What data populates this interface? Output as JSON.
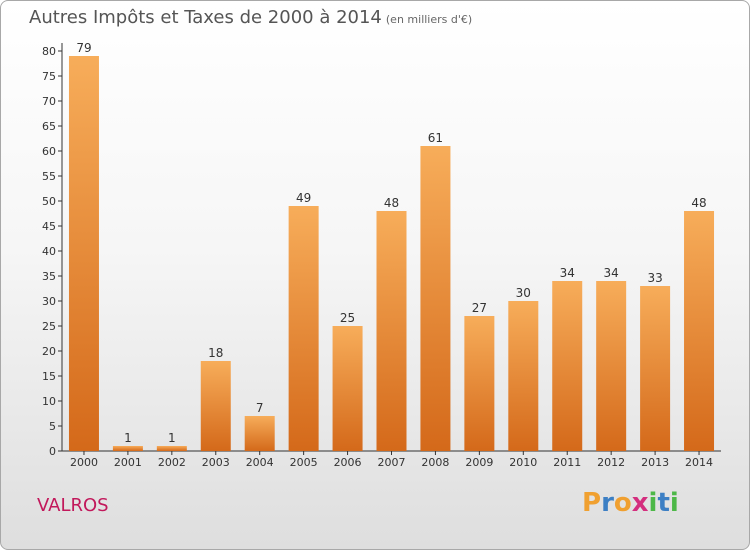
{
  "title": "Autres Impôts et Taxes de 2000 à 2014",
  "unit": "(en milliers d'€)",
  "place": "VALROS",
  "brand": {
    "letters": [
      "P",
      "r",
      "o",
      "x",
      "i",
      "t",
      "i"
    ],
    "colors": [
      "#f0a030",
      "#3c7fc4",
      "#f0a030",
      "#d42e7e",
      "#4db848",
      "#3c7fc4",
      "#4db848"
    ]
  },
  "colors": {
    "bar": "#f2913a",
    "bar_light": "#f7ad5a",
    "bar_dark": "#d4691a",
    "title": "#555555",
    "place": "#c2185b"
  },
  "chart_data": {
    "type": "bar",
    "categories": [
      "2000",
      "2001",
      "2002",
      "2003",
      "2004",
      "2005",
      "2006",
      "2007",
      "2008",
      "2009",
      "2010",
      "2011",
      "2012",
      "2013",
      "2014"
    ],
    "values": [
      79,
      1,
      1,
      18,
      7,
      49,
      25,
      48,
      61,
      27,
      30,
      34,
      34,
      33,
      48
    ],
    "title": "Autres Impôts et Taxes de 2000 à 2014",
    "ylim": [
      0,
      80
    ],
    "yticks": [
      0,
      5,
      10,
      15,
      20,
      25,
      30,
      35,
      40,
      45,
      50,
      55,
      60,
      65,
      70,
      75,
      80
    ],
    "grid": false,
    "data_labels": true
  }
}
